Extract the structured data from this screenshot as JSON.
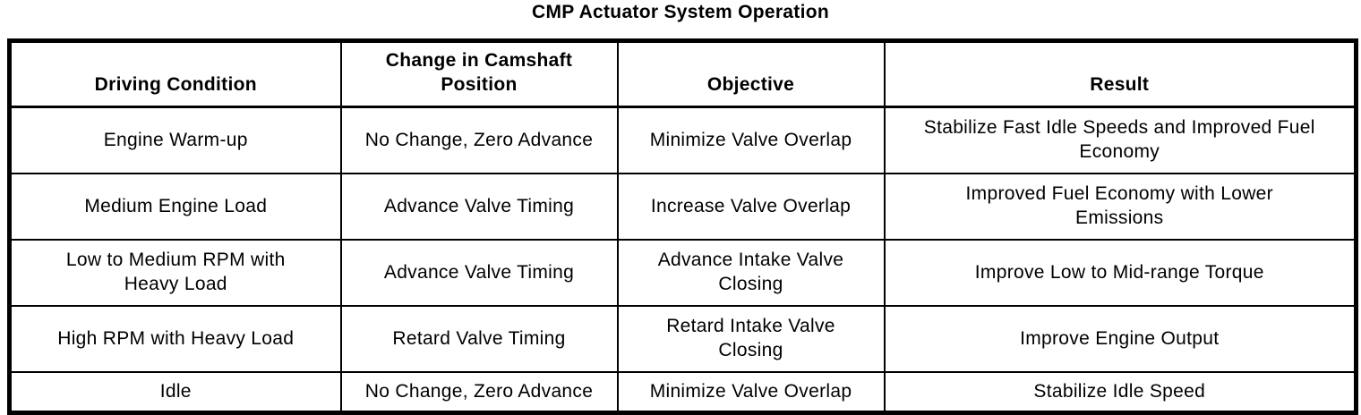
{
  "title": "CMP Actuator System Operation",
  "table": {
    "headers": [
      "Driving Condition",
      "Change in Camshaft\nPosition",
      "Objective",
      "Result"
    ],
    "rows": [
      [
        "Engine Warm-up",
        "No Change, Zero Advance",
        "Minimize Valve Overlap",
        "Stabilize Fast Idle Speeds and Improved Fuel\nEconomy"
      ],
      [
        "Medium Engine Load",
        "Advance Valve Timing",
        "Increase Valve Overlap",
        "Improved Fuel Economy with Lower\nEmissions"
      ],
      [
        "Low to Medium RPM with\nHeavy Load",
        "Advance Valve Timing",
        "Advance Intake Valve\nClosing",
        "Improve Low to Mid-range Torque"
      ],
      [
        "High RPM with Heavy Load",
        "Retard Valve Timing",
        "Retard Intake Valve\nClosing",
        "Improve Engine Output"
      ],
      [
        "Idle",
        "No Change, Zero Advance",
        "Minimize Valve Overlap",
        "Stabilize Idle Speed"
      ]
    ]
  }
}
